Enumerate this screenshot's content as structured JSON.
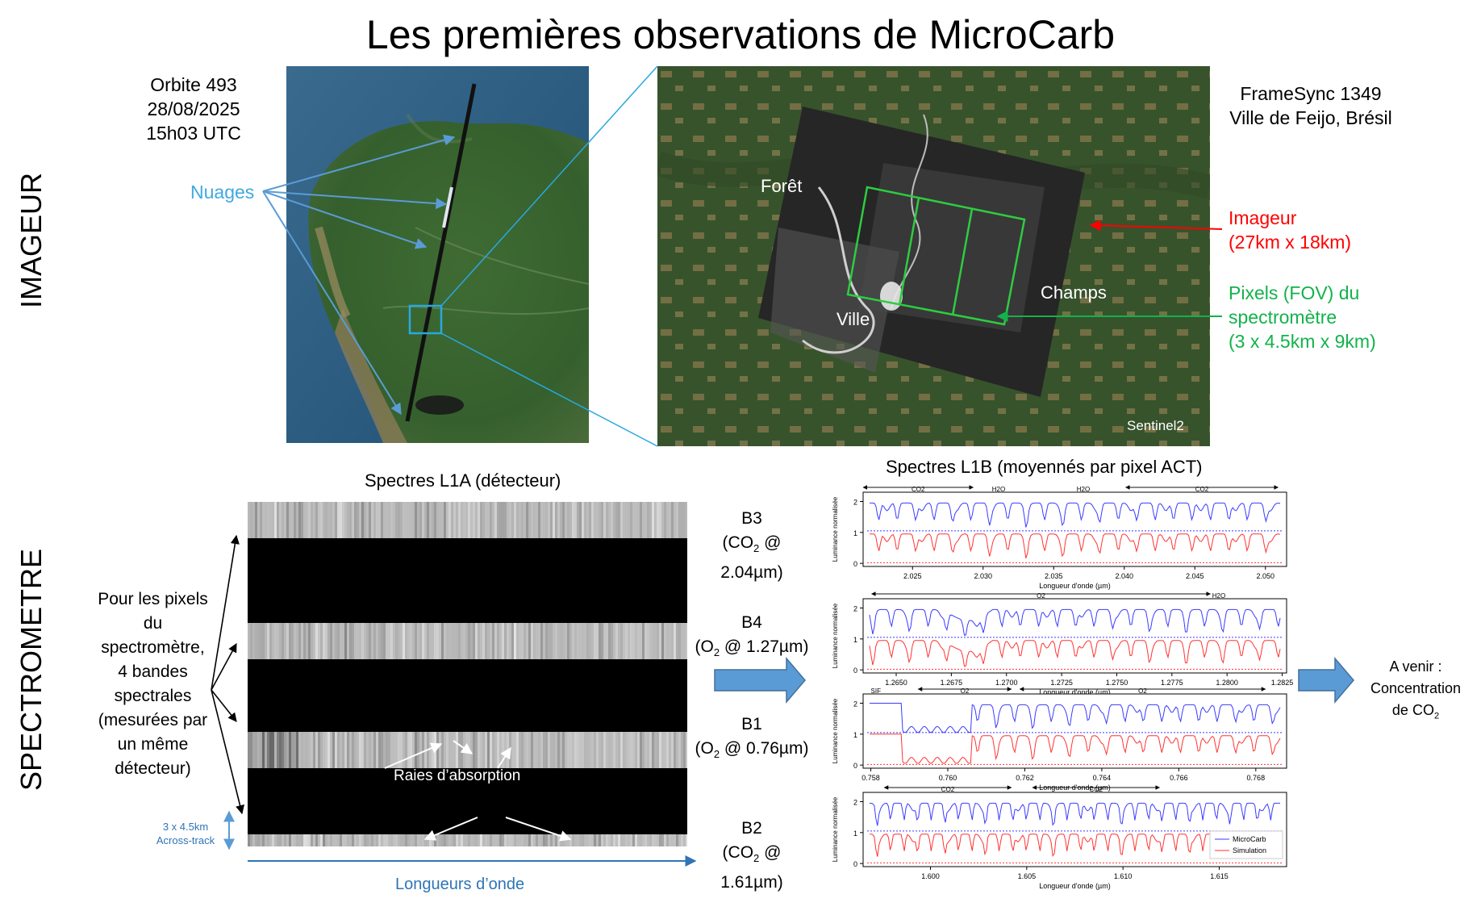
{
  "title": "Les premières observations de MicroCarb",
  "sections": {
    "imager": "IMAGEUR",
    "spectrometer": "SPECTROMETRE"
  },
  "orbit": {
    "line1": "Orbite 493",
    "line2": "28/08/2025",
    "line3": "15h03 UTC"
  },
  "clouds_label": "Nuages",
  "framesync": {
    "line1": "FrameSync 1349",
    "line2": "Ville de Feijo, Brésil"
  },
  "zoom_labels": {
    "forest": "Forêt",
    "city": "Ville",
    "fields": "Champs",
    "credit": "Sentinel2"
  },
  "imager_note": {
    "line1": "Imageur",
    "line2": "(27km x 18km)"
  },
  "fov_note": {
    "line1": "Pixels (FOV) du",
    "line2": "spectromètre",
    "line3": "(3 x 4.5km x 9km)"
  },
  "l1a": {
    "title": "Spectres L1A (détecteur)",
    "left_note": [
      "Pour les pixels",
      "du",
      "spectromètre,",
      "4 bandes",
      "spectrales",
      "(mesurées par",
      "un même",
      "détecteur)"
    ],
    "absorption": "Raies d’absorption",
    "across_track": {
      "line1": "3 x 4.5km",
      "line2": "Across-track"
    },
    "wavelengths": "Longueurs d’onde",
    "bands": [
      {
        "name": "B3",
        "gas": "CO",
        "sub": "2",
        "rest": " @ 2.04µm)"
      },
      {
        "name": "B4",
        "gas": "O",
        "sub": "2",
        "rest": " @ 1.27µm)"
      },
      {
        "name": "B1",
        "gas": "O",
        "sub": "2",
        "rest": " @ 0.76µm)"
      },
      {
        "name": "B2",
        "gas": "CO",
        "sub": "2",
        "rest": " @ 1.61µm)"
      }
    ]
  },
  "l1b": {
    "title": "Spectres L1B (moyennés par pixel ACT)",
    "ylabel": "Luminance normalisée",
    "xlabel": "Longueur d'onde (µm)",
    "legend": {
      "microcarb": "MicroCarb",
      "simulation": "Simulation"
    },
    "colors": {
      "microcarb": "#3b3bff",
      "simulation": "#ff3333"
    }
  },
  "chart_data": [
    {
      "type": "line",
      "band": "B3",
      "xlabel": "Longueur d'onde (µm)",
      "ylabel": "Luminance normalisée",
      "xlim": [
        2.0215,
        2.0515
      ],
      "ylim": [
        -0.1,
        2.3
      ],
      "x_ticks": [
        "2.025",
        "2.030",
        "2.035",
        "2.040",
        "2.045",
        "2.050"
      ],
      "y_ticks": [
        "0",
        "1",
        "2"
      ],
      "annotations": [
        "CO2",
        "H2O",
        "H2O",
        "CO2"
      ],
      "series": [
        {
          "name": "MicroCarb",
          "offset": 1
        },
        {
          "name": "Simulation",
          "offset": 0
        }
      ]
    },
    {
      "type": "line",
      "band": "B4",
      "xlabel": "Longueur d'onde (µm)",
      "ylabel": "Luminance normalisée",
      "xlim": [
        1.2635,
        1.2827
      ],
      "ylim": [
        -0.1,
        2.3
      ],
      "x_ticks": [
        "1.2650",
        "1.2675",
        "1.2700",
        "1.2725",
        "1.2750",
        "1.2775",
        "1.2800",
        "1.2825"
      ],
      "y_ticks": [
        "0",
        "1",
        "2"
      ],
      "annotations": [
        "O2",
        "H2O"
      ],
      "series": [
        {
          "name": "MicroCarb",
          "offset": 1
        },
        {
          "name": "Simulation",
          "offset": 0
        }
      ]
    },
    {
      "type": "line",
      "band": "B1",
      "xlabel": "Longueur d'onde (µm)",
      "ylabel": "Luminance normalisée",
      "xlim": [
        0.7578,
        0.7688
      ],
      "ylim": [
        -0.1,
        2.3
      ],
      "x_ticks": [
        "0.758",
        "0.760",
        "0.762",
        "0.764",
        "0.766",
        "0.768"
      ],
      "y_ticks": [
        "0",
        "1",
        "2"
      ],
      "annotations": [
        "SIF",
        "O2",
        "O2"
      ],
      "series": [
        {
          "name": "MicroCarb",
          "offset": 1
        },
        {
          "name": "Simulation",
          "offset": 0
        }
      ]
    },
    {
      "type": "line",
      "band": "B2",
      "xlabel": "Longueur d'onde (µm)",
      "ylabel": "Luminance normalisée",
      "xlim": [
        1.5965,
        1.6185
      ],
      "ylim": [
        -0.1,
        2.3
      ],
      "x_ticks": [
        "1.600",
        "1.605",
        "1.610",
        "1.615"
      ],
      "y_ticks": [
        "0",
        "1",
        "2"
      ],
      "annotations": [
        "CO2",
        "CO2"
      ],
      "series": [
        {
          "name": "MicroCarb",
          "offset": 1
        },
        {
          "name": "Simulation",
          "offset": 0
        }
      ]
    }
  ],
  "future": {
    "line1": "A venir :",
    "line2": "Concentration",
    "line3": "de CO",
    "sub": "2"
  }
}
